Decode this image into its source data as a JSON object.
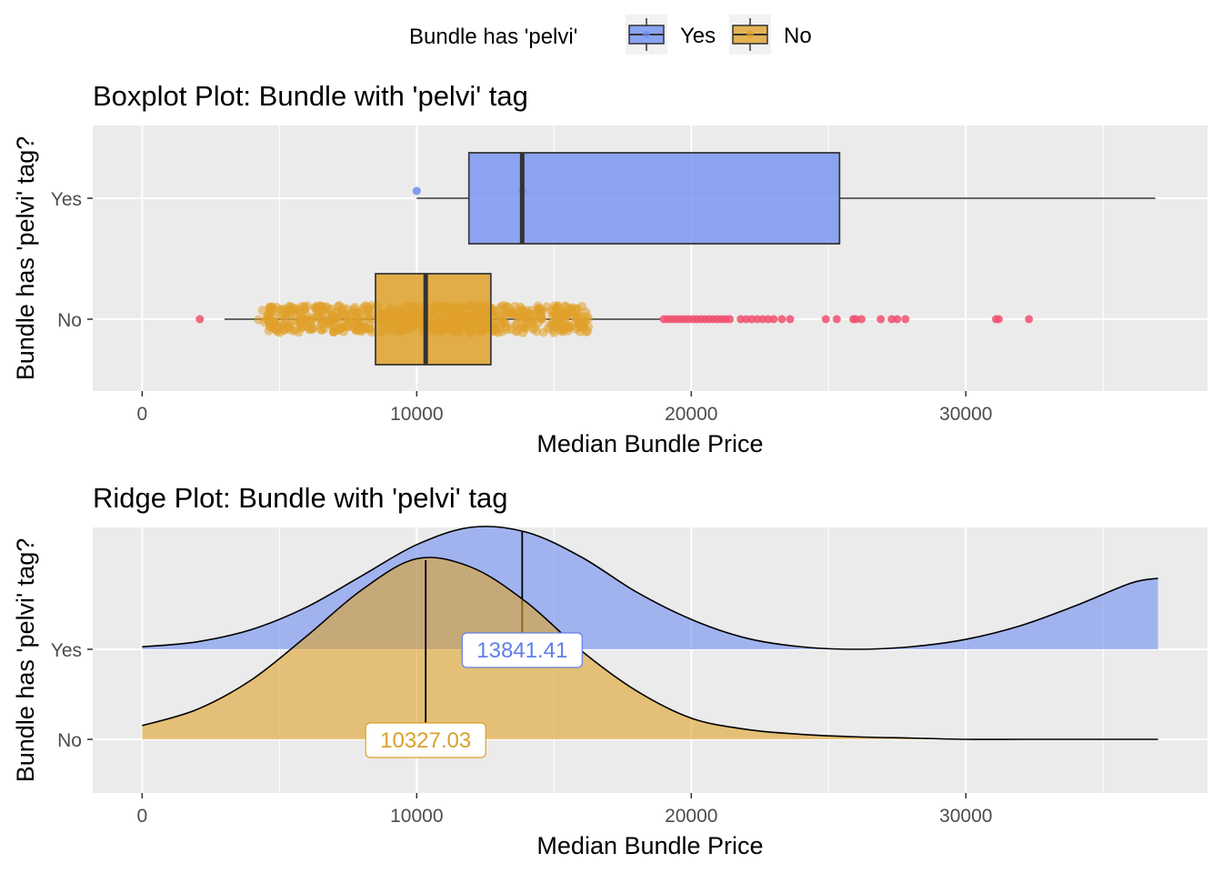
{
  "legend": {
    "title": "Bundle has 'pelvi'",
    "items": [
      {
        "label": "Yes",
        "color": "#6f8ef1"
      },
      {
        "label": "No",
        "color": "#e0a12a"
      }
    ]
  },
  "colors": {
    "panel_bg": "#ebebeb",
    "grid": "#ffffff",
    "yes_fill": "#6f8ef1",
    "no_fill": "#e0a12a",
    "outlier": "#f0506e",
    "yes_label": "#5f7fe8",
    "no_label": "#d9a12a"
  },
  "chart_data": [
    {
      "type": "box",
      "title": "Boxplot Plot: Bundle with 'pelvi' tag",
      "xlabel": "Median Bundle Price",
      "ylabel": "Bundle has 'pelvi' tag?",
      "xlim": [
        -1800,
        38800
      ],
      "x_ticks": [
        0,
        10000,
        20000,
        30000
      ],
      "categories": [
        "Yes",
        "No"
      ],
      "boxes": [
        {
          "name": "Yes",
          "whisker_low": 10000,
          "q1": 11900,
          "median": 13841.41,
          "q3": 25400,
          "whisker_high": 36900,
          "outliers": [
            10000
          ],
          "jitter_points": [
            10000,
            13841.41
          ],
          "color": "#6f8ef1"
        },
        {
          "name": "No",
          "whisker_low": 3000,
          "q1": 8500,
          "median": 10327.03,
          "q3": 12700,
          "whisker_high": 18900,
          "outliers": [
            2100,
            19000,
            19150,
            19300,
            19450,
            19600,
            19750,
            19900,
            20050,
            20200,
            20350,
            20500,
            20650,
            20800,
            20950,
            21100,
            21250,
            21400,
            21800,
            22000,
            22200,
            22400,
            22600,
            22800,
            23000,
            23300,
            23600,
            24900,
            25300,
            25900,
            26000,
            26200,
            26900,
            27300,
            27500,
            27800,
            31100,
            31200,
            32300
          ],
          "jitter_range": [
            4200,
            16600
          ],
          "color": "#e0a12a"
        }
      ]
    },
    {
      "type": "ridge",
      "title": "Ridge Plot: Bundle with 'pelvi' tag",
      "xlabel": "Median Bundle Price",
      "ylabel": "Bundle has 'pelvi' tag?",
      "xlim": [
        -1800,
        38800
      ],
      "x_ticks": [
        0,
        10000,
        20000,
        30000
      ],
      "categories": [
        "Yes",
        "No"
      ],
      "x": [
        0,
        2000,
        4000,
        6000,
        8000,
        10000,
        12000,
        14000,
        16000,
        18000,
        20000,
        22000,
        24000,
        26000,
        28000,
        30000,
        32000,
        34000,
        36000,
        37000
      ],
      "series": [
        {
          "name": "Yes",
          "density_scaled": [
            0.02,
            0.06,
            0.16,
            0.34,
            0.59,
            0.84,
            0.98,
            0.94,
            0.74,
            0.46,
            0.24,
            0.09,
            0.02,
            0.0,
            0.02,
            0.08,
            0.19,
            0.35,
            0.53,
            0.57
          ],
          "median": 13841.41,
          "median_label": "13841.41"
        },
        {
          "name": "No",
          "density_scaled": [
            0.11,
            0.24,
            0.48,
            0.83,
            1.2,
            1.45,
            1.38,
            1.1,
            0.71,
            0.39,
            0.17,
            0.08,
            0.04,
            0.02,
            0.01,
            0.0,
            0.0,
            0.0,
            0.0,
            0.0
          ],
          "median": 10327.03,
          "median_label": "10327.03"
        }
      ]
    }
  ]
}
